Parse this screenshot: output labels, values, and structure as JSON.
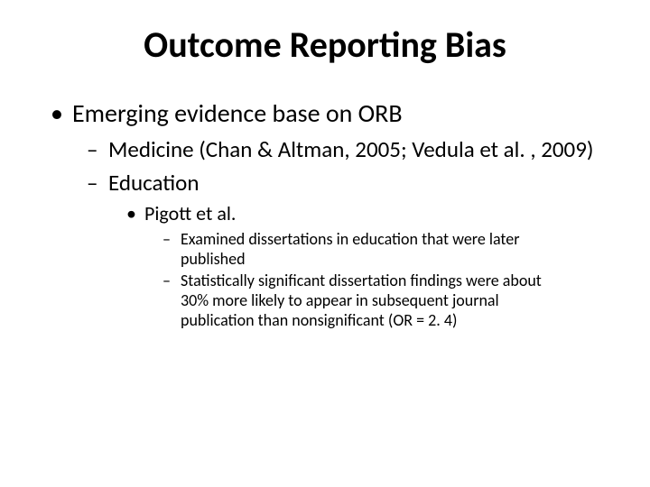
{
  "slide": {
    "title": "Outcome Reporting Bias",
    "background_color": "#ffffff",
    "text_color": "#000000",
    "title_fontsize": 40,
    "font_family": "Calibri",
    "bullets": {
      "level1": [
        {
          "text": "Emerging evidence base on ORB",
          "fontsize": 28
        }
      ],
      "level2": [
        {
          "text": "Medicine (Chan & Altman, 2005; Vedula et al. , 2009)",
          "fontsize": 25
        },
        {
          "text": "Education",
          "fontsize": 25
        }
      ],
      "level3": [
        {
          "text": "Pigott et al.",
          "fontsize": 22
        }
      ],
      "level4": [
        {
          "text": "Examined dissertations in education that were later published",
          "fontsize": 18
        },
        {
          "text": "Statistically significant dissertation findings were about 30% more likely to appear in subsequent journal publication than nonsignificant (OR = 2. 4)",
          "fontsize": 18
        }
      ]
    }
  }
}
